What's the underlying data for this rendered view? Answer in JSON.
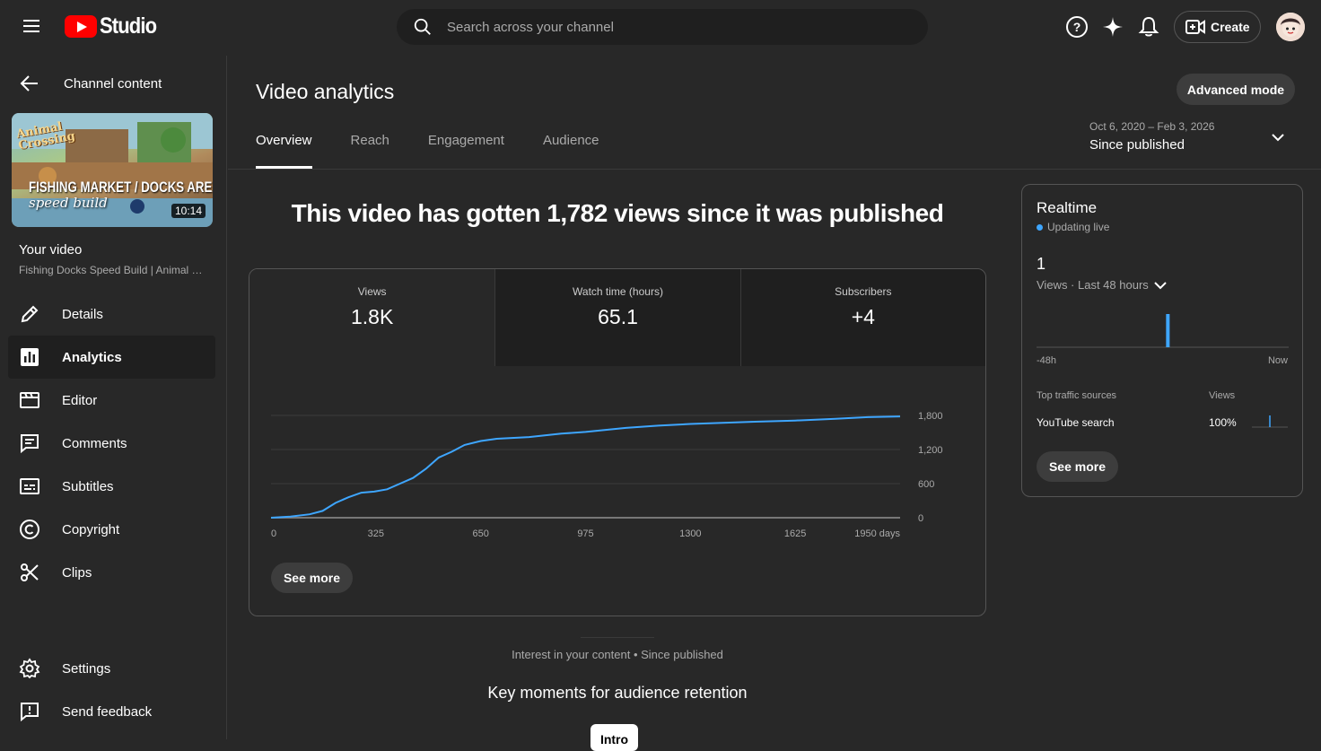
{
  "header": {
    "logo_text": "Studio",
    "search_placeholder": "Search across your channel",
    "create_label": "Create"
  },
  "sidebar": {
    "back_label": "Channel content",
    "thumbnail": {
      "title_line1": "Animal",
      "title_line2": "Crossing",
      "banner": "FISHING MARKET / DOCKS AREA",
      "subtitle": "speed build",
      "duration": "10:14"
    },
    "your_video_label": "Your video",
    "video_title": "Fishing Docks Speed Build | Animal Crossing",
    "items": [
      {
        "label": "Details",
        "icon": "pencil-icon",
        "active": false
      },
      {
        "label": "Analytics",
        "icon": "analytics-icon",
        "active": true
      },
      {
        "label": "Editor",
        "icon": "clapperboard-icon",
        "active": false
      },
      {
        "label": "Comments",
        "icon": "comments-icon",
        "active": false
      },
      {
        "label": "Subtitles",
        "icon": "subtitles-icon",
        "active": false
      },
      {
        "label": "Copyright",
        "icon": "copyright-icon",
        "active": false
      },
      {
        "label": "Clips",
        "icon": "scissors-icon",
        "active": false
      }
    ],
    "bottom_items": [
      {
        "label": "Settings",
        "icon": "gear-icon"
      },
      {
        "label": "Send feedback",
        "icon": "feedback-icon"
      }
    ]
  },
  "main": {
    "title": "Video analytics",
    "advanced_mode_label": "Advanced mode",
    "tabs": [
      {
        "label": "Overview",
        "active": true
      },
      {
        "label": "Reach",
        "active": false
      },
      {
        "label": "Engagement",
        "active": false
      },
      {
        "label": "Audience",
        "active": false
      }
    ],
    "date_range": {
      "dates": "Oct 6, 2020 – Feb 3, 2026",
      "period": "Since published"
    },
    "headline": "This video has gotten 1,782 views since it was published",
    "metrics": [
      {
        "label": "Views",
        "value": "1.8K"
      },
      {
        "label": "Watch time (hours)",
        "value": "65.1"
      },
      {
        "label": "Subscribers",
        "value": "+4"
      }
    ],
    "see_more_label": "See more",
    "interest_text": "Interest in your content • Since published",
    "key_moments_title": "Key moments for audience retention",
    "intro_chip": "Intro"
  },
  "chart_data": {
    "type": "line",
    "x_ticks": [
      "0",
      "325",
      "650",
      "975",
      "1300",
      "1625",
      "1950 days"
    ],
    "y_ticks": [
      "1,800",
      "1,200",
      "600",
      "0"
    ],
    "ylim": [
      0,
      1800
    ],
    "xlim": [
      0,
      1950
    ],
    "series": [
      {
        "color": "#3ea6ff",
        "x": [
          0,
          60,
          120,
          160,
          200,
          240,
          280,
          320,
          360,
          400,
          440,
          480,
          520,
          560,
          600,
          650,
          700,
          800,
          900,
          975,
          1100,
          1200,
          1300,
          1400,
          1500,
          1625,
          1750,
          1850,
          1950
        ],
        "y": [
          0,
          20,
          60,
          120,
          260,
          360,
          440,
          460,
          500,
          600,
          700,
          860,
          1060,
          1160,
          1280,
          1350,
          1390,
          1420,
          1480,
          1510,
          1580,
          1620,
          1650,
          1670,
          1690,
          1710,
          1740,
          1770,
          1782
        ]
      }
    ]
  },
  "realtime": {
    "title": "Realtime",
    "live_label": "Updating live",
    "value": "1",
    "sub_label": "Views · Last 48 hours",
    "axis_left": "-48h",
    "axis_right": "Now",
    "table_header_source": "Top traffic sources",
    "table_header_views": "Views",
    "source_name": "YouTube search",
    "source_pct": "100%",
    "see_more_label": "See more",
    "bar_position_hours_ago": 23,
    "accent": "#3ea6ff"
  }
}
